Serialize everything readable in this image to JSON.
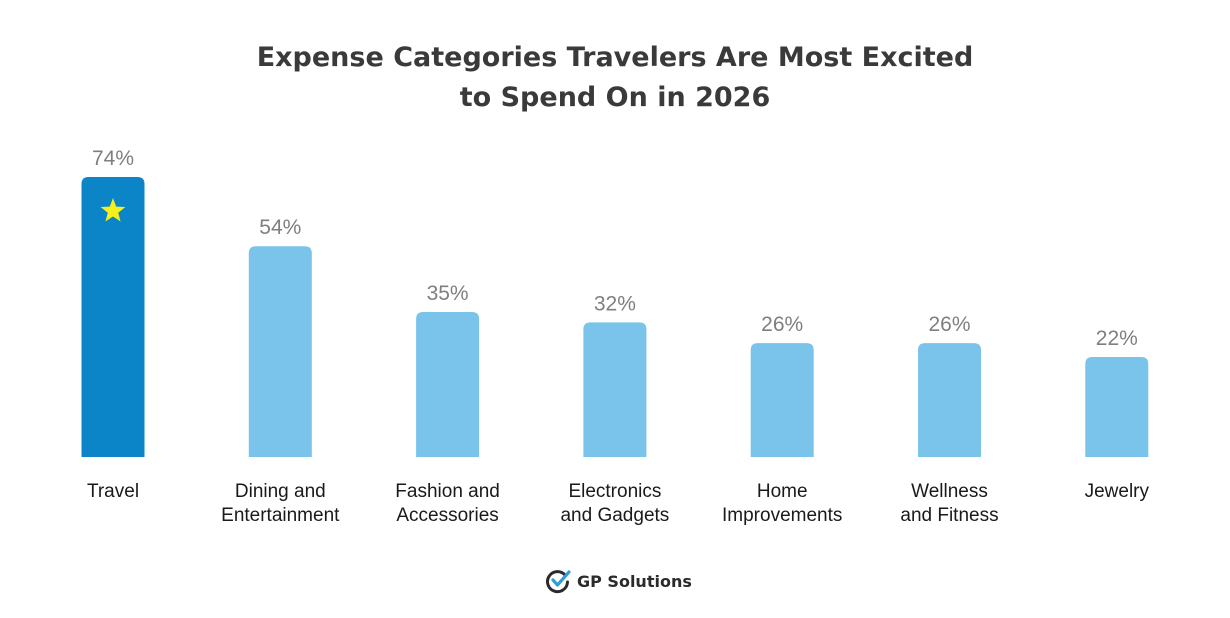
{
  "chart_data": {
    "type": "bar",
    "title": "Expense Categories Travelers Are Most Excited to Spend On in 2026",
    "title_lines": [
      "Expense Categories Travelers Are Most Excited",
      "to Spend On in 2026"
    ],
    "categories": [
      [
        "Travel"
      ],
      [
        "Dining and",
        "Entertainment"
      ],
      [
        "Fashion and",
        "Accessories"
      ],
      [
        "Electronics",
        "and Gadgets"
      ],
      [
        "Home",
        "Improvements"
      ],
      [
        "Wellness",
        "and Fitness"
      ],
      [
        "Jewelry"
      ]
    ],
    "values": [
      74,
      54,
      35,
      32,
      26,
      26,
      22
    ],
    "value_labels": [
      "74%",
      "54%",
      "35%",
      "32%",
      "26%",
      "26%",
      "22%"
    ],
    "unit": "%",
    "highlight_index": 0,
    "highlight_icon": "star-icon",
    "colors": {
      "highlight": "#0b85c8",
      "default": "#7ac3ea",
      "star": "#f5ef1a"
    },
    "xlabel": "",
    "ylabel": "",
    "grid": false,
    "legend": "none"
  },
  "brand": {
    "name": "GP Solutions",
    "icon": "checkmark-circle-icon",
    "colors": {
      "check": "#2a9fd8",
      "circle": "#2b2b2b"
    }
  }
}
